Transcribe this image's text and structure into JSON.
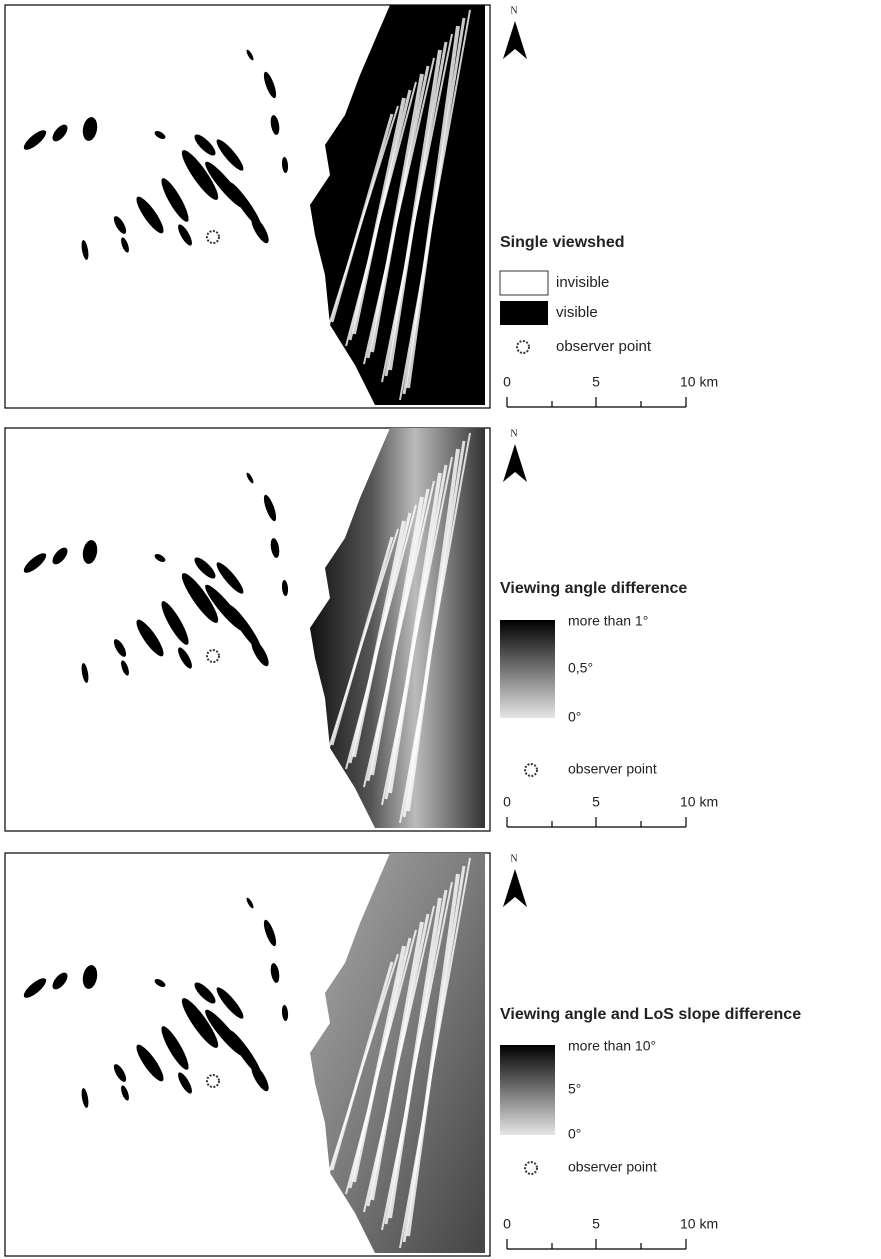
{
  "north_label": "N",
  "panels": [
    {
      "legend": {
        "title": "Single viewshed",
        "items": [
          "invisible",
          "visible"
        ],
        "point": "observer point"
      },
      "scale": [
        "0",
        "5",
        "10 km"
      ]
    },
    {
      "legend": {
        "title": "Viewing angle difference",
        "ramp_labels": [
          "more than 1°",
          "0,5°",
          "0°"
        ],
        "point": "observer point"
      },
      "scale": [
        "0",
        "5",
        "10 km"
      ]
    },
    {
      "legend": {
        "title": "Viewing angle and LoS slope difference",
        "ramp_labels": [
          "more than 10°",
          "5°",
          "0°"
        ],
        "point": "observer point"
      },
      "scale": [
        "0",
        "5",
        "10 km"
      ]
    }
  ]
}
